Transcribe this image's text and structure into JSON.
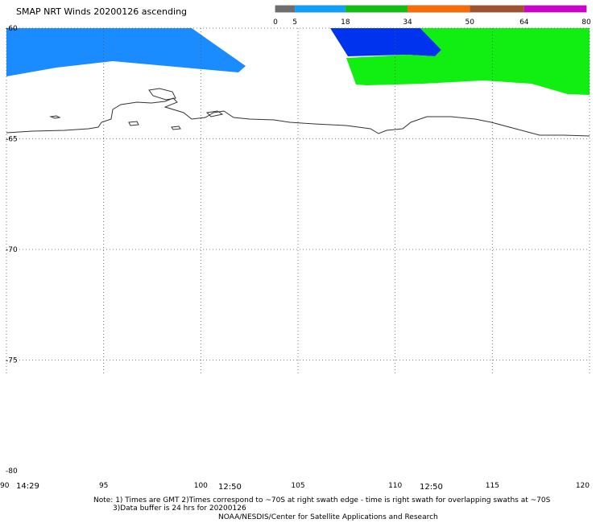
{
  "title": "SMAP NRT Winds 20200126 ascending",
  "colorbar": {
    "labels": [
      "0",
      "5",
      "18",
      "34",
      "50",
      "64",
      "80"
    ],
    "segments": [
      {
        "from": 0,
        "to": 5,
        "color": "#6e6e6e"
      },
      {
        "from": 5,
        "to": 18,
        "color": "#0aa0ff"
      },
      {
        "from": 18,
        "to": 34,
        "color": "#0cc20c"
      },
      {
        "from": 34,
        "to": 50,
        "color": "#ff6a00"
      },
      {
        "from": 50,
        "to": 64,
        "color": "#a0522d"
      },
      {
        "from": 64,
        "to": 80,
        "color": "#d000d0"
      }
    ]
  },
  "map": {
    "lon_range": [
      90,
      120
    ],
    "lat_range": [
      -60,
      -80
    ],
    "lat_ticks": [
      "-60",
      "-65",
      "-70",
      "-75",
      "-80"
    ],
    "lon_ticks": [
      "90",
      "95",
      "100",
      "105",
      "110",
      "115",
      "120"
    ],
    "colors": {
      "grid": "#555555",
      "coast": "#333333",
      "swath_light_blue": "#1a8cff",
      "swath_dark_blue": "#0033ee",
      "swath_green": "#11ee11"
    }
  },
  "swath_times": [
    "14:29",
    "12:50",
    "12:50"
  ],
  "notes": {
    "line1": "Note: 1) Times are GMT 2)Times correspond to ~70S at right swath edge - time is right swath for overlapping swaths at ~70S",
    "line2": "3)Data buffer is 24 hrs for 20200126",
    "credit": "NOAA/NESDIS/Center for Satellite Applications and Research"
  }
}
